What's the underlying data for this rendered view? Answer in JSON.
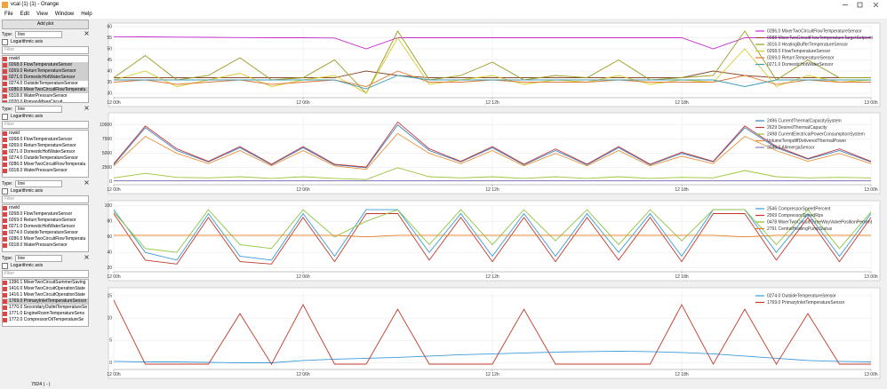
{
  "window": {
    "title": "vcal (1) (1) - Orange",
    "menu": [
      "File",
      "Edit",
      "View",
      "Window",
      "Help"
    ]
  },
  "sidebar": {
    "add_plot": "Add plot",
    "groups": [
      {
        "type_label": "Type:",
        "type_value": "line",
        "log_label": "Logarithmic axis",
        "filter": "Filter",
        "items": [
          "rowid",
          "0268.0 FlowTemperatureSensor",
          "0269.0 ReturnTemperatureSensor",
          "0271.0 DomesticHotWaterSensor",
          "0274.0 OutsideTemperatureSensor",
          "0286.0 MixerTwoCircuitFlowTemperatu",
          "0318.0 WaterPressureSensor",
          "0320.0 PrimaryMixerCircuit"
        ],
        "selected": [
          1,
          2,
          3,
          5
        ]
      },
      {
        "type_label": "Type:",
        "type_value": "line",
        "log_label": "Logarithmic axis",
        "filter": "Filter",
        "items": [
          "rowid",
          "0268.0 FlowTemperatureSensor",
          "0269.0 ReturnTemperatureSensor",
          "0271.0 DomesticHotWaterSensor",
          "0274.0 OutsideTemperatureSensor",
          "0286.0 MixerTwoCircuitFlowTemperatu",
          "0318.0 WaterPressureSensor"
        ],
        "selected": []
      },
      {
        "type_label": "Type:",
        "type_value": "line",
        "log_label": "Logarithmic axis",
        "filter": "Filter",
        "items": [
          "rowid",
          "0268.0 FlowTemperatureSensor",
          "0269.0 ReturnTemperatureSensor",
          "0271.0 DomesticHotWaterSensor",
          "0274.0 OutsideTemperatureSensor",
          "0286.0 MixerTwoCircuitFlowTemperatu",
          "0318.0 WaterPressureSensor"
        ],
        "selected": []
      },
      {
        "type_label": "Type:",
        "type_value": "line",
        "log_label": "Logarithmic axis",
        "filter": "Filter",
        "items": [
          "1396.1 MixerTwoCircuitSummerSaving",
          "1416.0 MixerTwoCircuitOperationState",
          "1416.1 MixerTwoCircuitOperationState",
          "1769.0 PrimaryInletTemperatureSensor",
          "1770.0 SecondaryOutletTemperatureSe",
          "1771.0 EngineRoomTemperatureSens",
          "1772.0 CompressorOilTemperatureSe"
        ],
        "selected": [
          3
        ]
      }
    ]
  },
  "status": "7924 | - |",
  "chart_data": [
    {
      "type": "line",
      "x": [
        0,
        1,
        2,
        3,
        4,
        5,
        6,
        7,
        8,
        9,
        10,
        11,
        12,
        13,
        14,
        15,
        16,
        17,
        18,
        19,
        20,
        21,
        22,
        23,
        24
      ],
      "xlim": [
        0,
        24
      ],
      "xticks": [
        {
          "value": 0,
          "label": "12 00h"
        },
        {
          "value": 6,
          "label": "12 06h"
        },
        {
          "value": 12,
          "label": "12 12h"
        },
        {
          "value": 18,
          "label": "12 18h"
        },
        {
          "value": 24,
          "label": "13 00h"
        }
      ],
      "ylim": [
        28,
        60
      ],
      "yticks": [
        30,
        35,
        40,
        45,
        50,
        55,
        60
      ],
      "grid": true,
      "legend": "top-right",
      "series": [
        {
          "name": "0286.0 MixerTwoCircuitFlowTemperatureSensor",
          "color": "#c72bd1",
          "values": [
            55.5,
            55.4,
            55.3,
            55.2,
            55.1,
            55,
            55,
            54.9,
            50,
            55,
            55,
            55,
            55,
            55,
            55,
            55,
            55,
            55,
            55,
            50,
            55,
            55,
            55,
            55,
            55
          ]
        },
        {
          "name": "0088 MixerTwoCircuitFlowTemperatureTargetSetpoint",
          "color": "#8b4a2b",
          "values": [
            37,
            37,
            37,
            37,
            37,
            37,
            37,
            37,
            40,
            38,
            37,
            37,
            37,
            37,
            37,
            37,
            37,
            37,
            37,
            40,
            38,
            37,
            37,
            37,
            37
          ]
        },
        {
          "name": "3016.0 HeatingBufferTemperatureSensor",
          "color": "#9a9a1e",
          "values": [
            37,
            47,
            36,
            38,
            46,
            36,
            37,
            45,
            30,
            58,
            36,
            38,
            44,
            36,
            38,
            37,
            45,
            36,
            37,
            38,
            58,
            36,
            45,
            37,
            37
          ]
        },
        {
          "name": "0268.0 FlowTemperatureSensor",
          "color": "#d8c92a",
          "values": [
            36,
            40,
            33,
            36,
            39,
            33,
            36,
            38,
            30,
            55,
            34,
            36,
            38,
            34,
            36,
            35,
            38,
            34,
            36,
            35,
            50,
            33,
            38,
            35,
            36
          ]
        },
        {
          "name": "0269.0 ReturnTemperatureSensor",
          "color": "#e07b39",
          "values": [
            35,
            36,
            34,
            35,
            36,
            34,
            35,
            36,
            33,
            40,
            35,
            35,
            36,
            35,
            35,
            35,
            36,
            35,
            35,
            35,
            38,
            34,
            36,
            35,
            35
          ]
        },
        {
          "name": "0271.0 DomesticHotWaterSensor",
          "color": "#3b9fb5",
          "values": [
            36,
            36,
            36,
            36,
            36,
            36,
            36,
            36,
            32,
            38,
            36,
            36,
            36,
            36,
            36,
            36,
            36,
            36,
            36,
            36,
            33,
            36,
            36,
            36,
            36
          ]
        }
      ]
    },
    {
      "type": "line",
      "x": [
        0,
        1,
        2,
        3,
        4,
        5,
        6,
        7,
        8,
        9,
        10,
        11,
        12,
        13,
        14,
        15,
        16,
        17,
        18,
        19,
        20,
        21,
        22,
        23,
        24
      ],
      "xlim": [
        0,
        24
      ],
      "xticks": [
        {
          "value": 0,
          "label": "12 00h"
        },
        {
          "value": 6,
          "label": "12 06h"
        },
        {
          "value": 12,
          "label": "12 12h"
        },
        {
          "value": 18,
          "label": "12 18h"
        },
        {
          "value": 24,
          "label": "13 00h"
        }
      ],
      "ylim": [
        -500,
        11500
      ],
      "yticks": [
        0,
        2500,
        5000,
        7500,
        10000
      ],
      "grid": true,
      "legend": "top-right",
      "series": [
        {
          "name": "2496 CurrentThermalCapacitySystem",
          "color": "#3a7fc4",
          "values": [
            3000,
            9500,
            5500,
            3500,
            6000,
            3000,
            6000,
            3000,
            2500,
            10000,
            5500,
            3500,
            6000,
            3000,
            5500,
            3000,
            6000,
            3000,
            5000,
            3500,
            9500,
            6000,
            4000,
            5500,
            3500
          ]
        },
        {
          "name": "2629 DesiredThermalCapacity",
          "color": "#c23b3b",
          "values": [
            3200,
            9800,
            5800,
            3600,
            6200,
            3100,
            6200,
            3100,
            2600,
            10500,
            5800,
            3600,
            6200,
            3100,
            5800,
            3100,
            6200,
            3100,
            5200,
            3600,
            9800,
            6200,
            4100,
            5800,
            3600
          ]
        },
        {
          "name": "2498 CurrentElectricalPowerConsumptionSystem",
          "color": "#9cc43a",
          "values": [
            700,
            1500,
            800,
            700,
            900,
            600,
            900,
            600,
            400,
            2500,
            900,
            700,
            900,
            600,
            900,
            600,
            900,
            600,
            800,
            700,
            2000,
            900,
            700,
            800,
            700
          ]
        },
        {
          "name": "VolumeTempdiffDeliveredThermalPower",
          "color": "#e69138",
          "values": [
            2800,
            8000,
            5000,
            3200,
            5500,
            2800,
            5500,
            2800,
            2200,
            8500,
            5000,
            3200,
            5500,
            2800,
            5000,
            2800,
            5500,
            2800,
            4500,
            3200,
            8000,
            5500,
            3600,
            5000,
            3200
          ]
        },
        {
          "name": "3043.0 AllenergaSensor",
          "color": "#8e7cc3",
          "values": [
            200,
            200,
            200,
            200,
            200,
            200,
            200,
            200,
            200,
            200,
            200,
            200,
            200,
            200,
            200,
            200,
            200,
            200,
            200,
            200,
            200,
            200,
            200,
            200,
            200
          ]
        }
      ]
    },
    {
      "type": "line",
      "x": [
        0,
        1,
        2,
        3,
        4,
        5,
        6,
        7,
        8,
        9,
        10,
        11,
        12,
        13,
        14,
        15,
        16,
        17,
        18,
        19,
        20,
        21,
        22,
        23,
        24
      ],
      "xlim": [
        0,
        24
      ],
      "xticks": [
        {
          "value": 0,
          "label": "12 00h"
        },
        {
          "value": 6,
          "label": "12 06h"
        },
        {
          "value": 12,
          "label": "12 12h"
        },
        {
          "value": 18,
          "label": "12 18h"
        },
        {
          "value": 24,
          "label": "13 00h"
        }
      ],
      "ylim": [
        15,
        102
      ],
      "yticks": [
        20,
        40,
        60,
        80,
        100
      ],
      "grid": true,
      "legend": "top-right",
      "series": [
        {
          "name": "2546 CompressorSpeedPercent",
          "color": "#3a9bd9",
          "values": [
            95,
            40,
            30,
            90,
            35,
            30,
            90,
            35,
            95,
            95,
            40,
            90,
            35,
            90,
            35,
            90,
            40,
            90,
            35,
            95,
            95,
            40,
            90,
            35,
            90
          ]
        },
        {
          "name": "2569 CompressorSpeedRps",
          "color": "#c0392b",
          "values": [
            90,
            30,
            25,
            85,
            28,
            25,
            85,
            28,
            90,
            90,
            30,
            85,
            28,
            85,
            28,
            85,
            30,
            85,
            28,
            90,
            90,
            30,
            85,
            28,
            85
          ]
        },
        {
          "name": "0478 MixerTwoCircuitThreeWayValvePositionPercent",
          "color": "#8cc63f",
          "values": [
            92,
            45,
            40,
            95,
            50,
            45,
            95,
            60,
            80,
            95,
            50,
            95,
            50,
            95,
            55,
            95,
            50,
            95,
            55,
            95,
            95,
            50,
            95,
            45,
            92
          ]
        },
        {
          "name": "2791 CentralHeatingPumpStatus",
          "color": "#e67e22",
          "values": [
            62,
            62,
            62,
            62,
            62,
            62,
            62,
            62,
            60,
            62,
            62,
            62,
            62,
            62,
            62,
            62,
            62,
            62,
            62,
            62,
            60,
            62,
            62,
            62,
            62
          ]
        }
      ]
    },
    {
      "type": "line",
      "x": [
        0,
        1,
        2,
        3,
        4,
        5,
        6,
        7,
        8,
        9,
        10,
        11,
        12,
        13,
        14,
        15,
        16,
        17,
        18,
        19,
        20,
        21,
        22,
        23,
        24
      ],
      "xlim": [
        0,
        24
      ],
      "xticks": [
        {
          "value": 0,
          "label": "12 00h"
        },
        {
          "value": 6,
          "label": "12 06h"
        },
        {
          "value": 12,
          "label": "12 12h"
        },
        {
          "value": 18,
          "label": "12 18h"
        },
        {
          "value": 24,
          "label": "13 00h"
        }
      ],
      "ylim": [
        -1.5,
        16
      ],
      "yticks": [
        0,
        5,
        10,
        15
      ],
      "grid": true,
      "legend": "top-right",
      "series": [
        {
          "name": "0274.0 OutsideTemperatureSensor",
          "color": "#3a9bd9",
          "values": [
            0.3,
            0.2,
            0.2,
            0.1,
            0,
            0,
            0.5,
            0.8,
            1,
            1.2,
            1.5,
            1.8,
            2,
            2.2,
            2.4,
            2.5,
            2.6,
            2.5,
            2.3,
            2,
            1.5,
            1,
            0.5,
            0.3,
            0.2
          ]
        },
        {
          "name": "1769.0 PrimaryInletTemperatureSensor",
          "color": "#c0392b",
          "values": [
            14,
            -0.3,
            -0.3,
            -0.3,
            11,
            -0.3,
            13,
            -0.3,
            -0.3,
            12,
            -0.3,
            -0.3,
            -0.3,
            12,
            -0.3,
            -0.3,
            -0.3,
            -0.3,
            13,
            -0.3,
            12,
            -0.3,
            11,
            -0.3,
            -0.3
          ]
        }
      ]
    }
  ]
}
